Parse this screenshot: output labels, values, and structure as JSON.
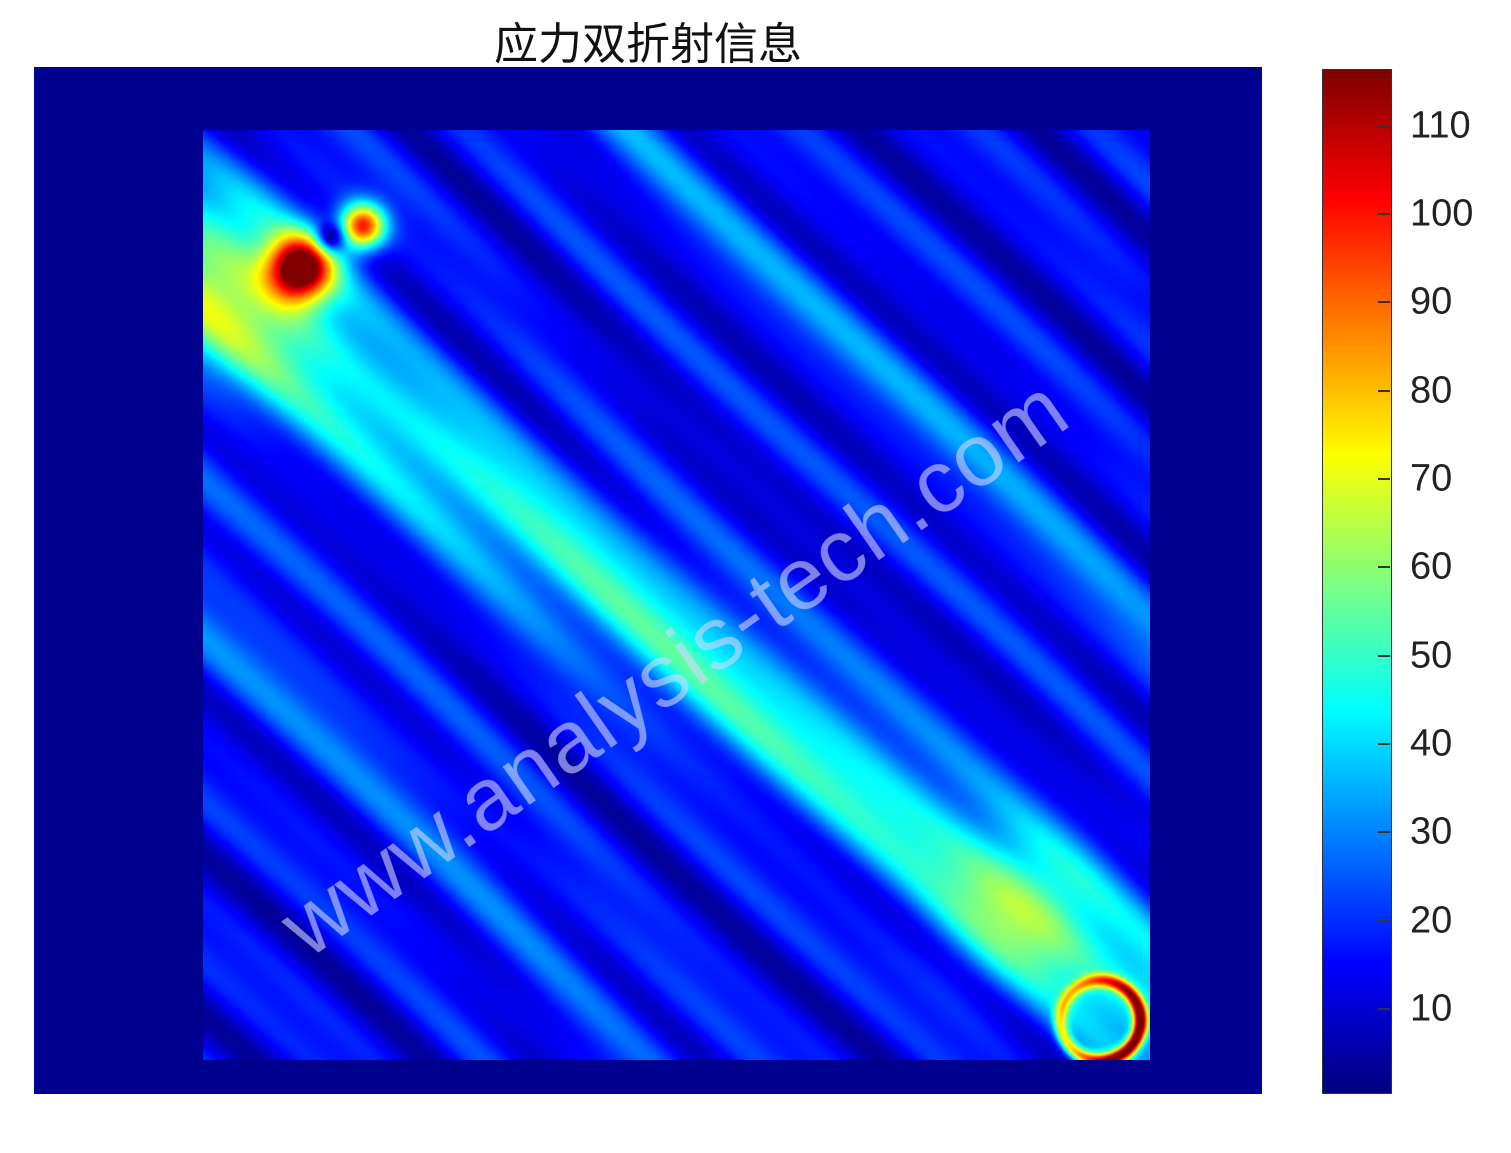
{
  "chart_data": {
    "type": "heatmap",
    "title": "应力双折射信息",
    "colormap": "jet",
    "clim": [
      0.5,
      116.3
    ],
    "colorbar": {
      "ticks": [
        10,
        20,
        30,
        40,
        50,
        60,
        70,
        80,
        90,
        100,
        110
      ],
      "tick_labels": [
        "10",
        "20",
        "30",
        "40",
        "50",
        "60",
        "70",
        "80",
        "90",
        "100",
        "110"
      ],
      "position": "right"
    },
    "background_value": 0,
    "features": [
      {
        "description": "diagonal band from top-left to bottom-right",
        "value_range": [
          30,
          55
        ]
      },
      {
        "description": "stress lobes near top-left",
        "max_value": 110
      },
      {
        "description": "stress ring near bottom-right",
        "max_value": 110
      }
    ],
    "axes_visible": false
  },
  "watermark": "www.analysis-tech.com"
}
